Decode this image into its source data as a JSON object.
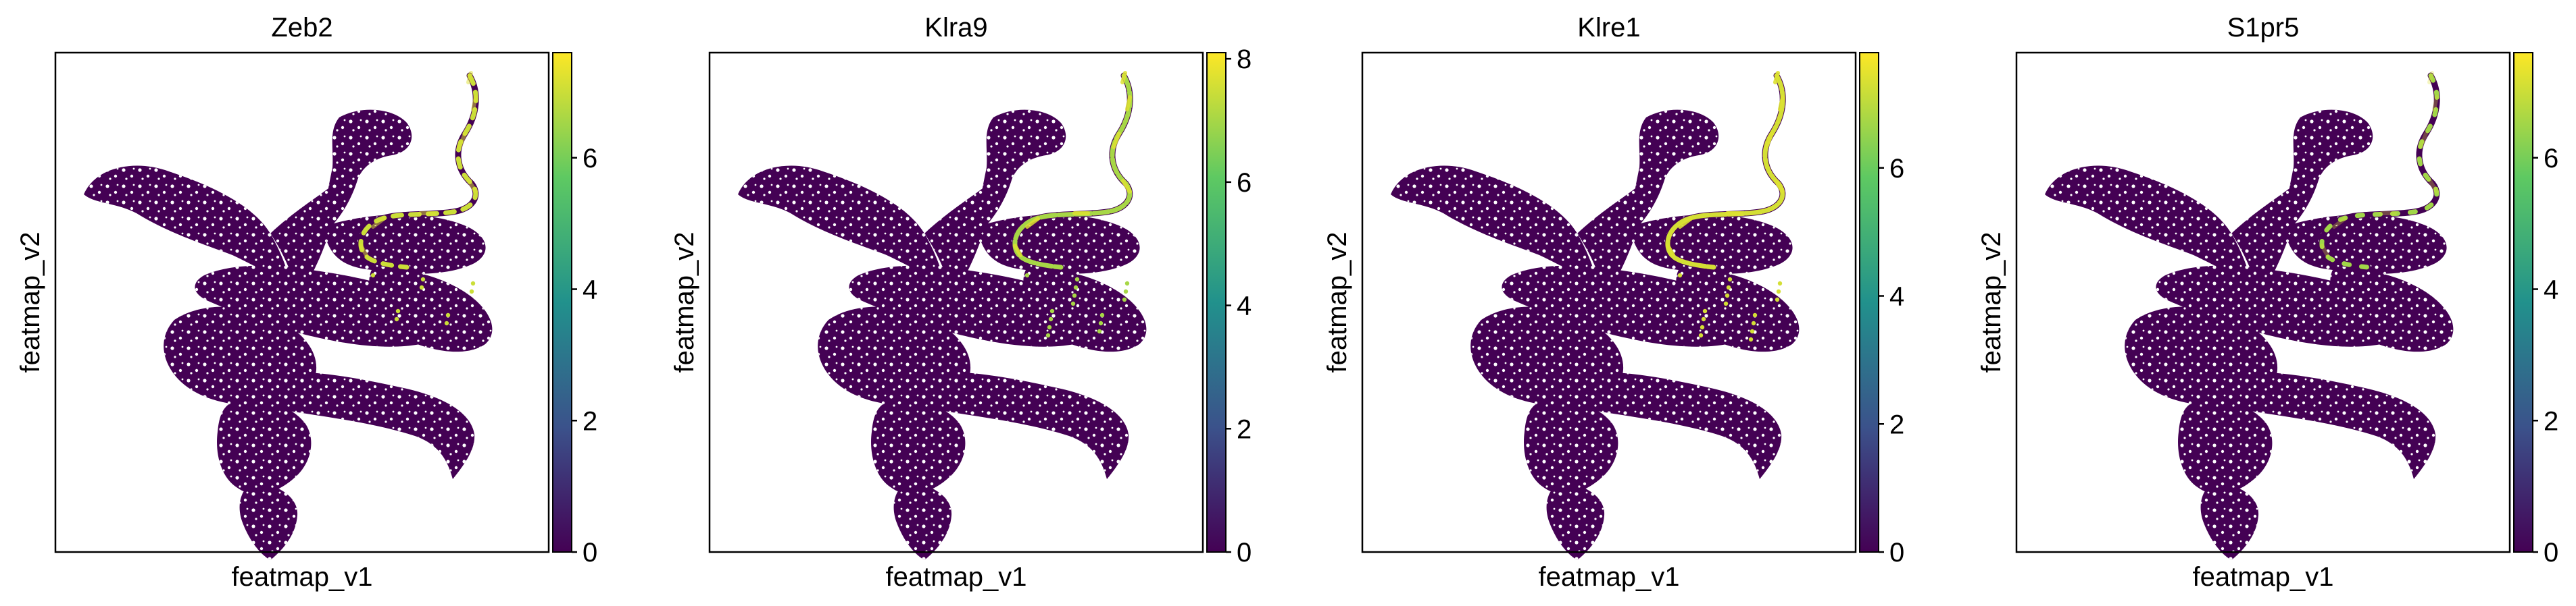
{
  "colormap": {
    "name": "viridis",
    "stops": [
      "#440154",
      "#3b528b",
      "#21918c",
      "#5ec962",
      "#fde725"
    ],
    "low_color": "#440154",
    "high_color": "#fde725"
  },
  "chart_data": [
    {
      "type": "scatter",
      "title": "Zeb2",
      "xlabel": "featmap_v1",
      "ylabel": "featmap_v2",
      "grid": false,
      "colorbar": {
        "range": [
          0,
          7.6
        ],
        "ticks": [
          0,
          2,
          4,
          6
        ],
        "tick_labels": [
          "0",
          "2",
          "4",
          "6"
        ]
      },
      "expression_summary": {
        "background_value": 0,
        "high_region": "upper-right trajectory and part of right cluster",
        "high_value": 7.0,
        "high_fraction": 0.5
      }
    },
    {
      "type": "scatter",
      "title": "Klra9",
      "xlabel": "featmap_v1",
      "ylabel": "featmap_v2",
      "grid": false,
      "colorbar": {
        "range": [
          0,
          8.1
        ],
        "ticks": [
          0,
          2,
          4,
          6,
          8
        ],
        "tick_labels": [
          "0",
          "2",
          "4",
          "6",
          "8"
        ]
      },
      "expression_summary": {
        "background_value": 0,
        "high_region": "upper-right trajectory",
        "high_value": 7.0,
        "high_fraction": 0.85
      }
    },
    {
      "type": "scatter",
      "title": "Klre1",
      "xlabel": "featmap_v1",
      "ylabel": "featmap_v2",
      "grid": false,
      "colorbar": {
        "range": [
          0,
          7.8
        ],
        "ticks": [
          0,
          2,
          4,
          6
        ],
        "tick_labels": [
          "0",
          "2",
          "4",
          "6"
        ]
      },
      "expression_summary": {
        "background_value": 0,
        "high_region": "upper-right trajectory and right cluster",
        "high_value": 7.3,
        "high_fraction": 0.9
      }
    },
    {
      "type": "scatter",
      "title": "S1pr5",
      "xlabel": "featmap_v1",
      "ylabel": "featmap_v2",
      "grid": false,
      "colorbar": {
        "range": [
          0,
          7.6
        ],
        "ticks": [
          0,
          2,
          4,
          6
        ],
        "tick_labels": [
          "0",
          "2",
          "4",
          "6"
        ]
      },
      "expression_summary": {
        "background_value": 0,
        "high_region": "upper tip of trajectory",
        "high_value": 6.5,
        "high_fraction": 0.3
      }
    }
  ]
}
